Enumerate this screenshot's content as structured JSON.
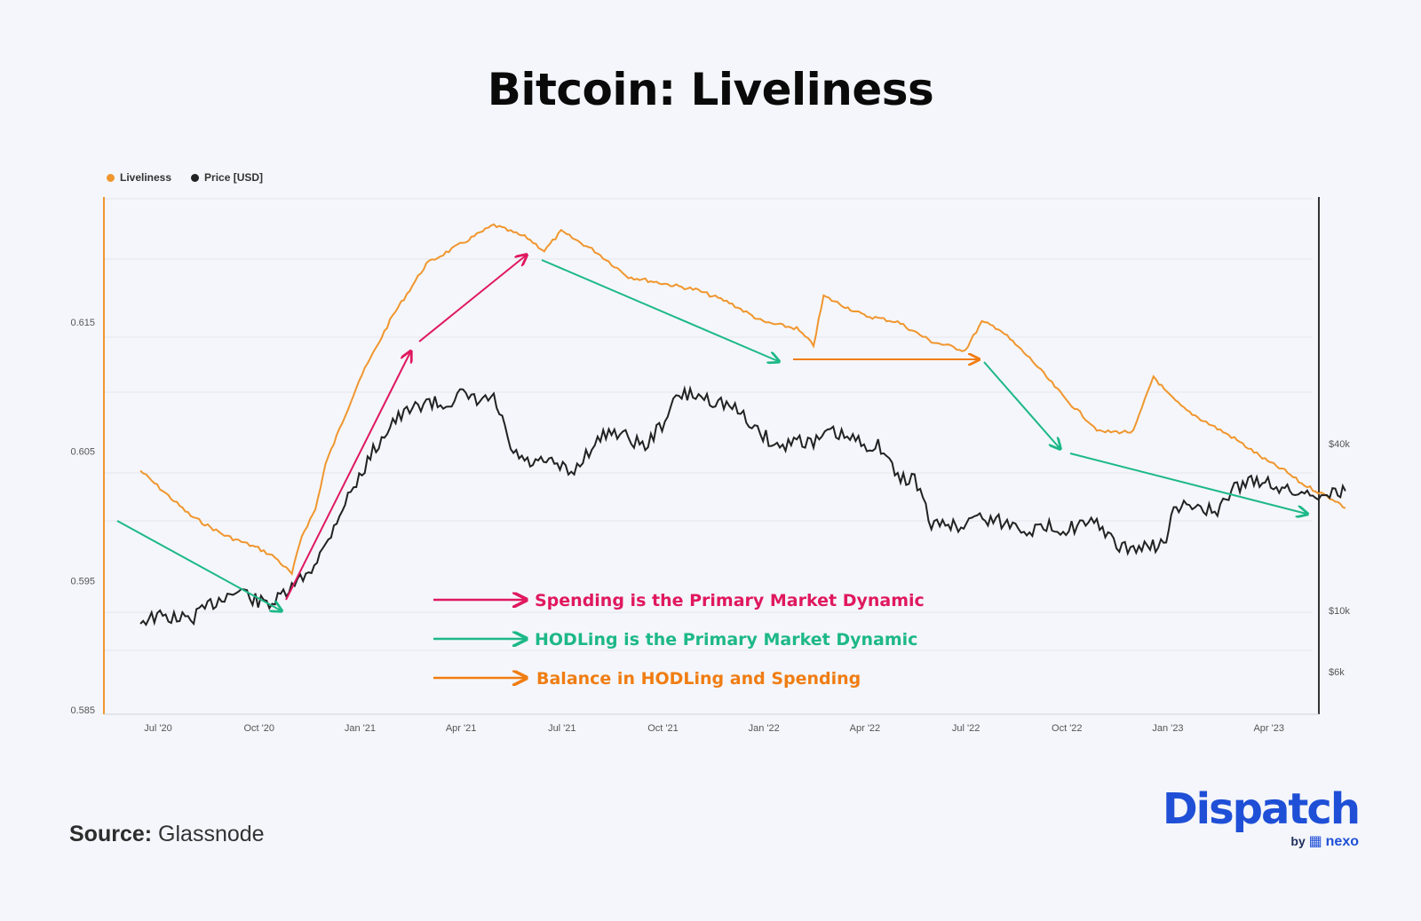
{
  "title": "Bitcoin: Liveliness",
  "legend": [
    {
      "label": "Liveliness",
      "color": "#f0962e"
    },
    {
      "label": "Price [USD]",
      "color": "#222222"
    }
  ],
  "annotations": [
    {
      "text": "Spending is the Primary Market Dynamic",
      "color": "#e0185e"
    },
    {
      "text": "HODLing is the Primary Market Dynamic",
      "color": "#1db887"
    },
    {
      "text": "Balance in HODLing and Spending",
      "color": "#f07d12"
    }
  ],
  "source": {
    "label": "Source:",
    "value": "Glassnode"
  },
  "brand": {
    "name": "Dispatch",
    "by": "by",
    "partner": "nexo"
  },
  "chart_data": {
    "type": "line",
    "title": "Bitcoin: Liveliness",
    "x_ticks": [
      "Jul '20",
      "Oct '20",
      "Jan '21",
      "Apr '21",
      "Jul '21",
      "Oct '21",
      "Jan '22",
      "Apr '22",
      "Jul '22",
      "Oct '22",
      "Jan '23",
      "Apr '23"
    ],
    "y_left_ticks": [
      "0.585",
      "0.595",
      "0.605",
      "0.615"
    ],
    "y_right_ticks": [
      "$6k",
      "$10k",
      "$40k"
    ],
    "ylim_left": [
      0.585,
      0.625
    ],
    "time_range_months": [
      -0.5,
      35.5
    ],
    "series": [
      {
        "name": "Liveliness",
        "axis": "left",
        "color": "#f0962e",
        "x": [
          -0.5,
          1,
          2,
          3,
          3.5,
          4,
          4.3,
          4.7,
          5,
          6,
          7,
          8,
          9,
          10,
          11,
          11.5,
          12,
          13,
          14,
          15,
          16,
          17,
          18,
          19,
          19.5,
          19.8,
          20.2,
          21,
          22,
          23,
          24,
          24.5,
          25,
          26,
          27,
          28,
          29,
          29.6,
          30,
          30.5,
          31,
          32,
          33,
          33.5,
          34,
          35,
          35.3
        ],
        "values": [
          0.6035,
          0.6,
          0.5985,
          0.5975,
          0.5968,
          0.5955,
          0.5985,
          0.6005,
          0.604,
          0.6105,
          0.6155,
          0.6195,
          0.621,
          0.6225,
          0.6215,
          0.6205,
          0.622,
          0.6205,
          0.6185,
          0.618,
          0.6175,
          0.6165,
          0.615,
          0.6145,
          0.6132,
          0.617,
          0.6165,
          0.6155,
          0.615,
          0.6135,
          0.6128,
          0.615,
          0.6145,
          0.612,
          0.609,
          0.6065,
          0.6065,
          0.6108,
          0.6095,
          0.6083,
          0.6075,
          0.606,
          0.6042,
          0.6035,
          0.6025,
          0.6012,
          0.6006
        ]
      },
      {
        "name": "Price [USD]",
        "axis": "right",
        "color": "#222222",
        "x": [
          -0.5,
          0,
          1,
          2,
          2.5,
          3,
          3.5,
          4,
          4.5,
          5,
          6,
          7,
          8,
          8.5,
          9,
          9.5,
          10,
          10.5,
          11,
          11.8,
          12.3,
          13,
          13.5,
          14,
          14.5,
          15,
          15.5,
          16,
          17,
          17.5,
          18,
          18.5,
          19,
          19.5,
          20,
          21,
          21.5,
          22,
          22.5,
          23,
          23.5,
          23.8,
          24.2,
          25,
          26,
          26.5,
          27,
          27.5,
          28,
          28.5,
          29,
          29.5,
          29.9,
          30.2,
          30.5,
          31,
          31.5,
          32,
          32.5,
          33,
          33.5,
          33.8,
          34,
          34.5,
          35,
          35.3
        ],
        "values": [
          9200,
          9500,
          9300,
          11300,
          11800,
          10700,
          10700,
          12000,
          13800,
          17000,
          30000,
          48000,
          57000,
          55000,
          60000,
          57000,
          58000,
          38000,
          34000,
          34000,
          31000,
          40000,
          45000,
          42000,
          39000,
          47000,
          60000,
          60000,
          55000,
          49000,
          43000,
          38500,
          42000,
          40000,
          44000,
          40000,
          39000,
          30000,
          30000,
          20000,
          21000,
          19500,
          22000,
          21000,
          19500,
          20000,
          19800,
          20300,
          20500,
          16800,
          16800,
          17000,
          17300,
          22500,
          23700,
          24000,
          22000,
          28000,
          29000,
          29500,
          27000,
          27000,
          26500,
          26500,
          26800,
          27000
        ]
      }
    ]
  }
}
